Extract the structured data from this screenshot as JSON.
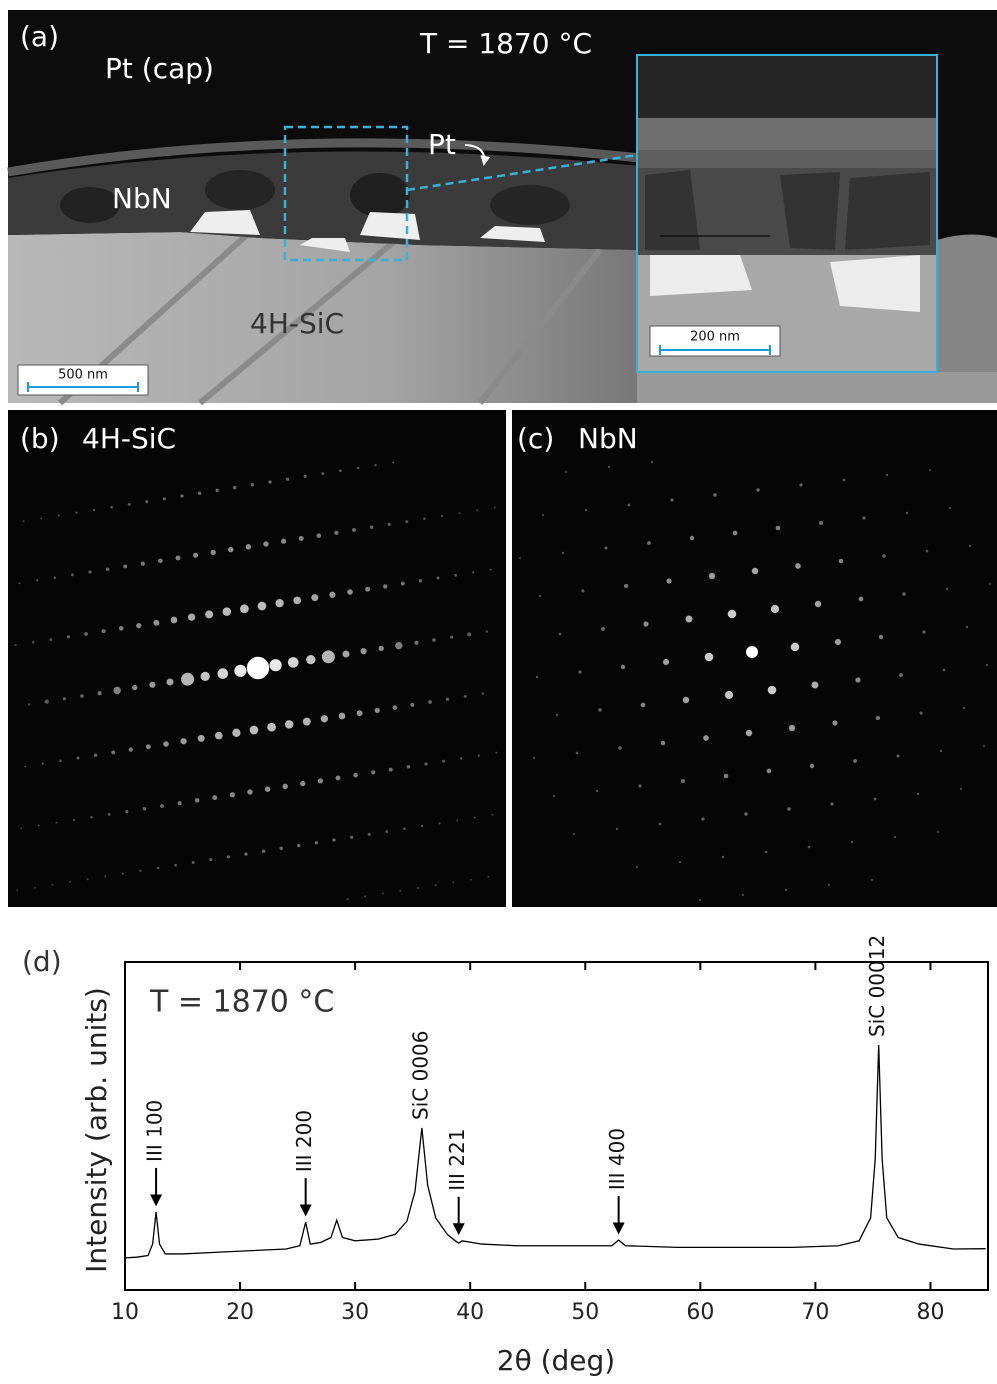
{
  "panels": {
    "a": {
      "label": "(a)",
      "temperature": "T = 1870 °C",
      "pt_cap": "Pt (cap)",
      "pt": "Pt",
      "nbn": "NbN",
      "sic": "4H-SiC",
      "scale_bar": "500 nm",
      "inset_scale_bar": "200 nm"
    },
    "b": {
      "label": "(b)",
      "title": "4H-SiC"
    },
    "c": {
      "label": "(c)",
      "title": "NbN"
    }
  },
  "chart_data": {
    "type": "line",
    "label": "(d)",
    "annotation": "T = 1870 °C",
    "x_label": "2θ (deg)",
    "y_label": "Intensity (arb. units)",
    "color": "#000000",
    "xlim": [
      10,
      85
    ],
    "xticks": [
      10,
      20,
      30,
      40,
      50,
      60,
      70,
      80
    ],
    "ylim": [
      0,
      100
    ],
    "x": [
      10,
      11,
      12,
      12.4,
      12.7,
      13,
      13.5,
      15,
      18,
      21,
      24,
      25.2,
      25.7,
      26.1,
      27,
      27.9,
      28.4,
      28.9,
      30,
      32,
      33.5,
      34.5,
      35.2,
      35.8,
      36.3,
      37,
      38,
      38.7,
      39,
      39.3,
      41,
      44,
      48,
      52.3,
      52.9,
      53.5,
      58,
      63,
      68,
      72,
      73.8,
      74.8,
      75.2,
      75.5,
      75.8,
      76.2,
      77.2,
      79,
      82,
      84.8
    ],
    "values": [
      9.8,
      10,
      10.5,
      14,
      23.8,
      14,
      11,
      11,
      11.5,
      12,
      12.5,
      13.5,
      20.7,
      14,
      14.5,
      16,
      21.3,
      16,
      15,
      15.5,
      17,
      21,
      30,
      49.4,
      32,
      22,
      17,
      15,
      14.3,
      15,
      14,
      13.5,
      13.5,
      13.5,
      15.2,
      13.5,
      13,
      13,
      13,
      13.5,
      15,
      22,
      40,
      74.7,
      40,
      22,
      16,
      14,
      12.5,
      12.6
    ],
    "annotations": [
      {
        "text": "III 100",
        "x": 12.7,
        "arrow": true
      },
      {
        "text": "III 200",
        "x": 25.7,
        "arrow": true
      },
      {
        "text": "SiC 0006",
        "x": 35.8,
        "arrow": false
      },
      {
        "text": "III 221",
        "x": 39,
        "arrow": true
      },
      {
        "text": "III 400",
        "x": 52.9,
        "arrow": true
      },
      {
        "text": "SiC 00012",
        "x": 75.5,
        "arrow": false
      }
    ]
  }
}
